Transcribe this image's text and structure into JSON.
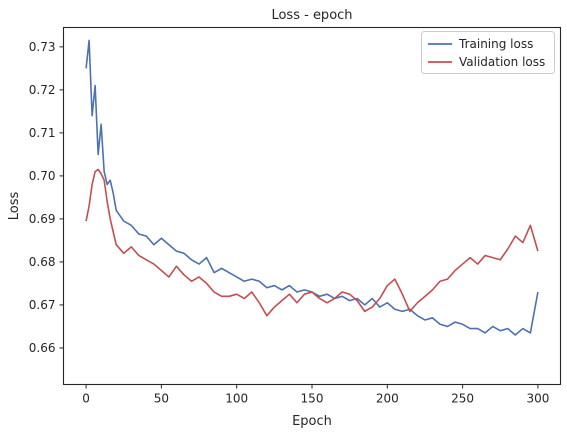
{
  "chart_data": {
    "type": "line",
    "title": "Loss - epoch",
    "xlabel": "Epoch",
    "ylabel": "Loss",
    "xlim": [
      -15,
      315
    ],
    "ylim": [
      0.6515,
      0.7345
    ],
    "xticks": [
      0,
      50,
      100,
      150,
      200,
      250,
      300
    ],
    "xtick_labels": [
      "0",
      "50",
      "100",
      "150",
      "200",
      "250",
      "300"
    ],
    "yticks": [
      0.66,
      0.67,
      0.68,
      0.69,
      0.7,
      0.71,
      0.72,
      0.73
    ],
    "ytick_labels": [
      "0.66",
      "0.67",
      "0.68",
      "0.69",
      "0.70",
      "0.71",
      "0.72",
      "0.73"
    ],
    "grid": false,
    "legend_position": "top-right",
    "series": [
      {
        "name": "Training loss",
        "color": "#4c72b0",
        "x": [
          0,
          2,
          4,
          6,
          8,
          10,
          12,
          14,
          16,
          18,
          20,
          25,
          30,
          35,
          40,
          45,
          50,
          55,
          60,
          65,
          70,
          75,
          80,
          85,
          90,
          95,
          100,
          105,
          110,
          115,
          120,
          125,
          130,
          135,
          140,
          145,
          150,
          155,
          160,
          165,
          170,
          175,
          180,
          185,
          190,
          195,
          200,
          205,
          210,
          215,
          220,
          225,
          230,
          235,
          240,
          245,
          250,
          255,
          260,
          265,
          270,
          275,
          280,
          285,
          290,
          295,
          300
        ],
        "values": [
          0.725,
          0.7315,
          0.714,
          0.721,
          0.705,
          0.712,
          0.701,
          0.698,
          0.699,
          0.696,
          0.692,
          0.6895,
          0.6885,
          0.6865,
          0.686,
          0.684,
          0.6855,
          0.684,
          0.6825,
          0.682,
          0.6805,
          0.6795,
          0.681,
          0.6775,
          0.6785,
          0.6775,
          0.6765,
          0.6755,
          0.676,
          0.6755,
          0.674,
          0.6745,
          0.6735,
          0.6745,
          0.673,
          0.6735,
          0.673,
          0.672,
          0.6725,
          0.6715,
          0.672,
          0.671,
          0.6715,
          0.67,
          0.6715,
          0.6695,
          0.6705,
          0.669,
          0.6685,
          0.669,
          0.6675,
          0.6665,
          0.667,
          0.6655,
          0.665,
          0.666,
          0.6655,
          0.6645,
          0.6645,
          0.6635,
          0.665,
          0.664,
          0.6645,
          0.663,
          0.6645,
          0.6635,
          0.673
        ]
      },
      {
        "name": "Validation loss",
        "color": "#c44e52",
        "x": [
          0,
          2,
          4,
          6,
          8,
          10,
          12,
          14,
          16,
          18,
          20,
          25,
          30,
          35,
          40,
          45,
          50,
          55,
          60,
          65,
          70,
          75,
          80,
          85,
          90,
          95,
          100,
          105,
          110,
          115,
          120,
          125,
          130,
          135,
          140,
          145,
          150,
          155,
          160,
          165,
          170,
          175,
          180,
          185,
          190,
          195,
          200,
          205,
          210,
          215,
          220,
          225,
          230,
          235,
          240,
          245,
          250,
          255,
          260,
          265,
          270,
          275,
          280,
          285,
          290,
          295,
          300
        ],
        "values": [
          0.6895,
          0.693,
          0.698,
          0.701,
          0.7015,
          0.7005,
          0.699,
          0.694,
          0.69,
          0.687,
          0.684,
          0.682,
          0.6835,
          0.6815,
          0.6805,
          0.6795,
          0.678,
          0.6765,
          0.679,
          0.677,
          0.6755,
          0.6765,
          0.675,
          0.673,
          0.672,
          0.672,
          0.6725,
          0.6715,
          0.673,
          0.6705,
          0.6675,
          0.6695,
          0.671,
          0.6725,
          0.6705,
          0.6725,
          0.673,
          0.6715,
          0.6705,
          0.6715,
          0.673,
          0.6725,
          0.671,
          0.6685,
          0.6695,
          0.6715,
          0.6745,
          0.676,
          0.6725,
          0.6685,
          0.6705,
          0.672,
          0.6735,
          0.6755,
          0.676,
          0.678,
          0.6795,
          0.681,
          0.6795,
          0.6815,
          0.681,
          0.6805,
          0.683,
          0.686,
          0.6845,
          0.6885,
          0.6825
        ]
      }
    ]
  }
}
